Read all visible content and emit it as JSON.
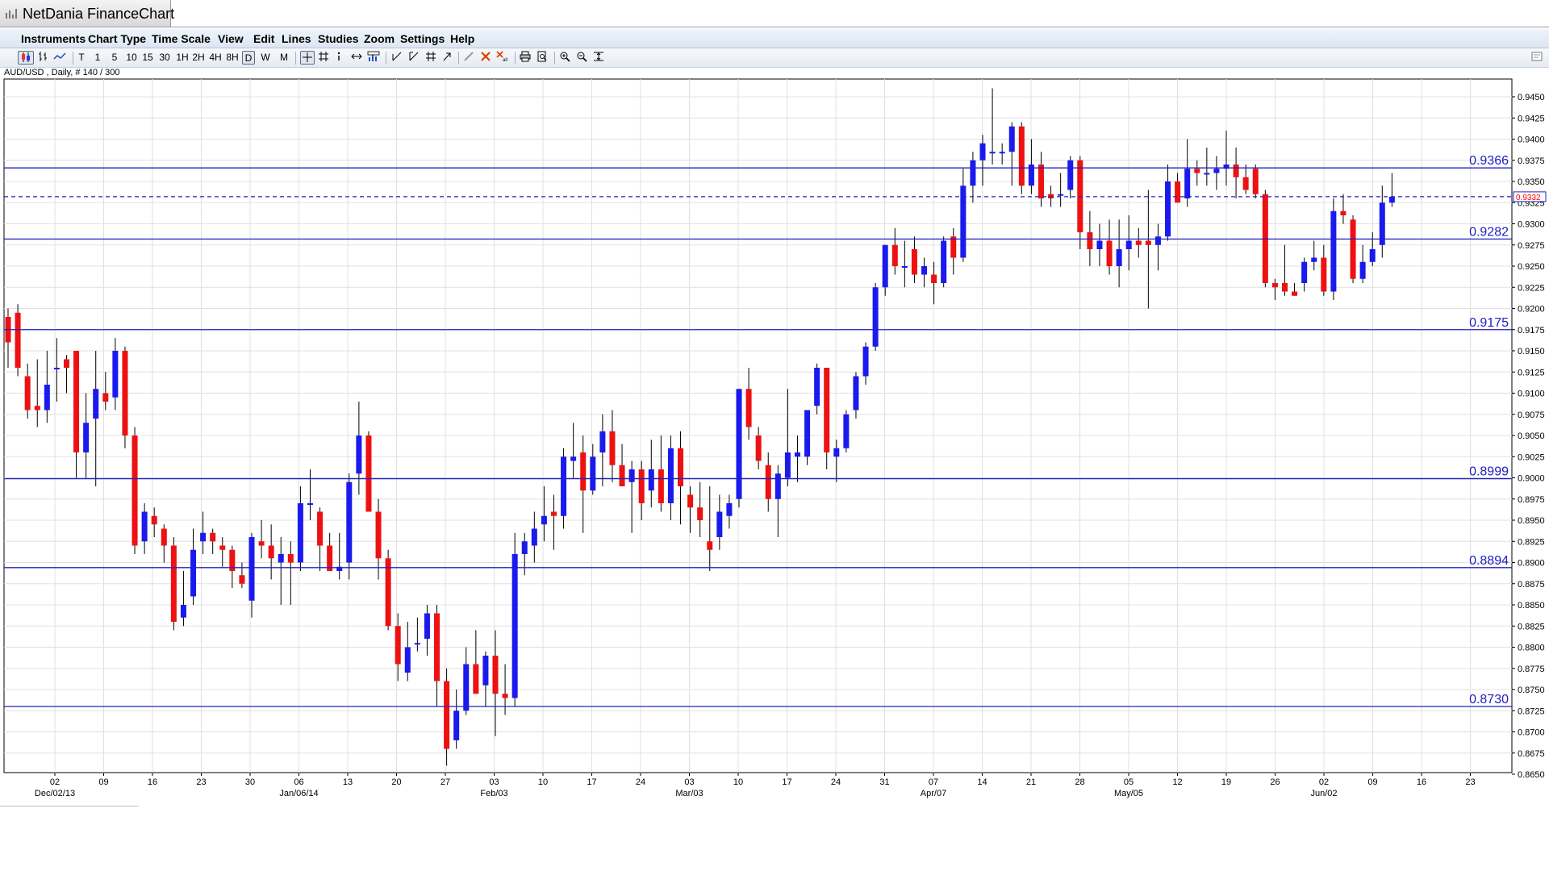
{
  "window": {
    "title": "NetDania FinanceChart"
  },
  "menu": [
    "Instruments",
    "Chart Type",
    "Time Scale",
    "View",
    "Edit",
    "Lines",
    "Studies",
    "Zoom",
    "Settings",
    "Help"
  ],
  "toolbar": {
    "timeframes": [
      "T",
      "1",
      "5",
      "10",
      "15",
      "30",
      "1H",
      "2H",
      "4H",
      "8H",
      "D",
      "W",
      "M"
    ],
    "selected": "D"
  },
  "symbol_info": "AUD/USD , Daily, # 140 / 300",
  "colors": {
    "bull": "#1a1aee",
    "bear": "#ee1111",
    "level_line": "#2020c0",
    "grid": "#e0e0e0",
    "last_price": "#ff0000"
  },
  "chart_data": {
    "type": "candlestick",
    "ylim": [
      0.865,
      0.946
    ],
    "y_ticks": [
      "0.9450",
      "0.9425",
      "0.9400",
      "0.9375",
      "0.9350",
      "0.9325",
      "0.9300",
      "0.9275",
      "0.9250",
      "0.9225",
      "0.9200",
      "0.9175",
      "0.9150",
      "0.9125",
      "0.9100",
      "0.9075",
      "0.9050",
      "0.9025",
      "0.9000",
      "0.8975",
      "0.8950",
      "0.8925",
      "0.8900",
      "0.8875",
      "0.8850",
      "0.8825",
      "0.8800",
      "0.8775",
      "0.8750",
      "0.8725",
      "0.8700",
      "0.8675",
      "0.8650"
    ],
    "x_ticks": [
      "02",
      "09",
      "16",
      "23",
      "30",
      "06",
      "13",
      "20",
      "27",
      "03",
      "10",
      "17",
      "24",
      "03",
      "10",
      "17",
      "24",
      "31",
      "07",
      "14",
      "21",
      "28",
      "05",
      "12",
      "19",
      "26",
      "02",
      "09",
      "16",
      "23"
    ],
    "x_months": [
      {
        "label": "Dec/02/13",
        "at_tick": 0
      },
      {
        "label": "Jan/06/14",
        "at_tick": 5
      },
      {
        "label": "Feb/03",
        "at_tick": 9
      },
      {
        "label": "Mar/03",
        "at_tick": 13
      },
      {
        "label": "Apr/07",
        "at_tick": 18
      },
      {
        "label": "May/05",
        "at_tick": 22
      },
      {
        "label": "Jun/02",
        "at_tick": 26
      }
    ],
    "levels": [
      {
        "value": 0.9366,
        "label": "0.9366"
      },
      {
        "value": 0.9282,
        "label": "0.9282"
      },
      {
        "value": 0.9175,
        "label": "0.9175"
      },
      {
        "value": 0.8999,
        "label": "0.8999"
      },
      {
        "value": 0.8894,
        "label": "0.8894"
      },
      {
        "value": 0.873,
        "label": "0.8730"
      }
    ],
    "last_price": {
      "value": 0.9332,
      "label": "0.9332"
    },
    "candles": [
      [
        0.919,
        0.92,
        0.913,
        0.916
      ],
      [
        0.9195,
        0.9205,
        0.912,
        0.913
      ],
      [
        0.912,
        0.9135,
        0.907,
        0.908
      ],
      [
        0.9085,
        0.914,
        0.906,
        0.908
      ],
      [
        0.908,
        0.915,
        0.9065,
        0.911
      ],
      [
        0.913,
        0.9165,
        0.909,
        0.913
      ],
      [
        0.914,
        0.9145,
        0.91,
        0.913
      ],
      [
        0.915,
        0.915,
        0.9,
        0.903
      ],
      [
        0.903,
        0.91,
        0.9,
        0.9065
      ],
      [
        0.907,
        0.915,
        0.899,
        0.9105
      ],
      [
        0.91,
        0.9125,
        0.908,
        0.909
      ],
      [
        0.9095,
        0.9165,
        0.908,
        0.915
      ],
      [
        0.915,
        0.9155,
        0.9035,
        0.905
      ],
      [
        0.905,
        0.906,
        0.891,
        0.892
      ],
      [
        0.8925,
        0.897,
        0.891,
        0.896
      ],
      [
        0.8955,
        0.8965,
        0.893,
        0.8945
      ],
      [
        0.894,
        0.8945,
        0.89,
        0.892
      ],
      [
        0.892,
        0.893,
        0.882,
        0.883
      ],
      [
        0.8835,
        0.889,
        0.8825,
        0.885
      ],
      [
        0.886,
        0.894,
        0.885,
        0.8915
      ],
      [
        0.8925,
        0.896,
        0.891,
        0.8935
      ],
      [
        0.8935,
        0.894,
        0.891,
        0.8925
      ],
      [
        0.892,
        0.893,
        0.8895,
        0.8915
      ],
      [
        0.8915,
        0.892,
        0.887,
        0.889
      ],
      [
        0.8885,
        0.89,
        0.887,
        0.8875
      ],
      [
        0.8855,
        0.8935,
        0.8835,
        0.893
      ],
      [
        0.8925,
        0.895,
        0.8905,
        0.892
      ],
      [
        0.892,
        0.8945,
        0.888,
        0.8905
      ],
      [
        0.89,
        0.893,
        0.885,
        0.891
      ],
      [
        0.891,
        0.8925,
        0.885,
        0.89
      ],
      [
        0.89,
        0.899,
        0.889,
        0.897
      ],
      [
        0.897,
        0.901,
        0.895,
        0.897
      ],
      [
        0.896,
        0.8965,
        0.889,
        0.892
      ],
      [
        0.892,
        0.8935,
        0.889,
        0.889
      ],
      [
        0.889,
        0.8935,
        0.888,
        0.8895
      ],
      [
        0.89,
        0.9005,
        0.888,
        0.8995
      ],
      [
        0.9005,
        0.909,
        0.898,
        0.905
      ],
      [
        0.905,
        0.9055,
        0.896,
        0.896
      ],
      [
        0.896,
        0.8975,
        0.888,
        0.8905
      ],
      [
        0.8905,
        0.8915,
        0.882,
        0.8825
      ],
      [
        0.8825,
        0.884,
        0.876,
        0.878
      ],
      [
        0.877,
        0.883,
        0.876,
        0.88
      ],
      [
        0.8805,
        0.8835,
        0.8795,
        0.8805
      ],
      [
        0.881,
        0.885,
        0.879,
        0.884
      ],
      [
        0.884,
        0.885,
        0.873,
        0.876
      ],
      [
        0.876,
        0.8775,
        0.866,
        0.868
      ],
      [
        0.869,
        0.875,
        0.868,
        0.8725
      ],
      [
        0.8725,
        0.88,
        0.872,
        0.878
      ],
      [
        0.878,
        0.882,
        0.8745,
        0.8745
      ],
      [
        0.8755,
        0.8795,
        0.873,
        0.879
      ],
      [
        0.879,
        0.882,
        0.8695,
        0.8745
      ],
      [
        0.8745,
        0.878,
        0.872,
        0.874
      ],
      [
        0.874,
        0.8935,
        0.873,
        0.891
      ],
      [
        0.891,
        0.8935,
        0.8885,
        0.8925
      ],
      [
        0.892,
        0.896,
        0.89,
        0.894
      ],
      [
        0.8945,
        0.899,
        0.8925,
        0.8955
      ],
      [
        0.896,
        0.898,
        0.8915,
        0.8955
      ],
      [
        0.8955,
        0.9035,
        0.894,
        0.9025
      ],
      [
        0.902,
        0.9065,
        0.9,
        0.9025
      ],
      [
        0.903,
        0.905,
        0.8935,
        0.8985
      ],
      [
        0.8985,
        0.904,
        0.898,
        0.9025
      ],
      [
        0.903,
        0.9075,
        0.899,
        0.9055
      ],
      [
        0.9055,
        0.908,
        0.8995,
        0.9015
      ],
      [
        0.9015,
        0.904,
        0.899,
        0.899
      ],
      [
        0.8995,
        0.902,
        0.8935,
        0.901
      ],
      [
        0.901,
        0.902,
        0.895,
        0.897
      ],
      [
        0.8985,
        0.9045,
        0.8965,
        0.901
      ],
      [
        0.901,
        0.905,
        0.896,
        0.897
      ],
      [
        0.897,
        0.905,
        0.895,
        0.9035
      ],
      [
        0.9035,
        0.9055,
        0.8945,
        0.899
      ],
      [
        0.898,
        0.899,
        0.8935,
        0.8965
      ],
      [
        0.8965,
        0.8995,
        0.893,
        0.895
      ],
      [
        0.8925,
        0.899,
        0.889,
        0.8915
      ],
      [
        0.893,
        0.898,
        0.8915,
        0.896
      ],
      [
        0.8955,
        0.898,
        0.894,
        0.897
      ],
      [
        0.8975,
        0.9105,
        0.8965,
        0.9105
      ],
      [
        0.9105,
        0.913,
        0.9045,
        0.906
      ],
      [
        0.905,
        0.906,
        0.901,
        0.902
      ],
      [
        0.9015,
        0.903,
        0.896,
        0.8975
      ],
      [
        0.8975,
        0.9015,
        0.893,
        0.9005
      ],
      [
        0.9,
        0.9105,
        0.899,
        0.903
      ],
      [
        0.9025,
        0.905,
        0.8995,
        0.903
      ],
      [
        0.9025,
        0.908,
        0.9015,
        0.908
      ],
      [
        0.9085,
        0.9135,
        0.9075,
        0.913
      ],
      [
        0.913,
        0.913,
        0.901,
        0.903
      ],
      [
        0.9025,
        0.9045,
        0.8995,
        0.9035
      ],
      [
        0.9035,
        0.908,
        0.903,
        0.9075
      ],
      [
        0.908,
        0.9125,
        0.907,
        0.912
      ],
      [
        0.912,
        0.916,
        0.911,
        0.9155
      ],
      [
        0.9155,
        0.923,
        0.915,
        0.9225
      ],
      [
        0.9225,
        0.9275,
        0.9215,
        0.9275
      ],
      [
        0.9275,
        0.9295,
        0.924,
        0.925
      ],
      [
        0.925,
        0.928,
        0.9225,
        0.925
      ],
      [
        0.927,
        0.9285,
        0.923,
        0.924
      ],
      [
        0.924,
        0.926,
        0.9225,
        0.925
      ],
      [
        0.924,
        0.9255,
        0.9205,
        0.923
      ],
      [
        0.923,
        0.9285,
        0.9225,
        0.928
      ],
      [
        0.9285,
        0.9295,
        0.924,
        0.926
      ],
      [
        0.926,
        0.9365,
        0.9255,
        0.9345
      ],
      [
        0.9345,
        0.9385,
        0.9325,
        0.9375
      ],
      [
        0.9375,
        0.9405,
        0.9345,
        0.9395
      ],
      [
        0.9385,
        0.946,
        0.937,
        0.9385
      ],
      [
        0.9385,
        0.9395,
        0.937,
        0.9385
      ],
      [
        0.9385,
        0.942,
        0.9345,
        0.9415
      ],
      [
        0.9415,
        0.942,
        0.9335,
        0.9345
      ],
      [
        0.9345,
        0.94,
        0.9335,
        0.937
      ],
      [
        0.937,
        0.9385,
        0.932,
        0.933
      ],
      [
        0.9335,
        0.9345,
        0.932,
        0.933
      ],
      [
        0.9335,
        0.936,
        0.932,
        0.9335
      ],
      [
        0.934,
        0.938,
        0.933,
        0.9375
      ],
      [
        0.9375,
        0.938,
        0.927,
        0.929
      ],
      [
        0.929,
        0.9315,
        0.925,
        0.927
      ],
      [
        0.927,
        0.93,
        0.925,
        0.928
      ],
      [
        0.928,
        0.9305,
        0.924,
        0.925
      ],
      [
        0.925,
        0.9305,
        0.9225,
        0.927
      ],
      [
        0.927,
        0.931,
        0.9245,
        0.928
      ],
      [
        0.928,
        0.9295,
        0.926,
        0.9275
      ],
      [
        0.928,
        0.934,
        0.92,
        0.9275
      ],
      [
        0.9275,
        0.93,
        0.9245,
        0.9285
      ],
      [
        0.9285,
        0.937,
        0.928,
        0.935
      ],
      [
        0.935,
        0.936,
        0.9325,
        0.9325
      ],
      [
        0.933,
        0.94,
        0.932,
        0.9365
      ],
      [
        0.9365,
        0.9375,
        0.9345,
        0.936
      ],
      [
        0.936,
        0.939,
        0.9345,
        0.936
      ],
      [
        0.936,
        0.938,
        0.934,
        0.9365
      ],
      [
        0.9365,
        0.941,
        0.9345,
        0.937
      ],
      [
        0.937,
        0.939,
        0.933,
        0.9355
      ],
      [
        0.9355,
        0.937,
        0.9335,
        0.934
      ],
      [
        0.9365,
        0.937,
        0.933,
        0.9335
      ],
      [
        0.9335,
        0.934,
        0.9225,
        0.923
      ],
      [
        0.923,
        0.9235,
        0.921,
        0.9225
      ],
      [
        0.923,
        0.9275,
        0.9215,
        0.922
      ],
      [
        0.922,
        0.923,
        0.9215,
        0.9215
      ],
      [
        0.923,
        0.926,
        0.922,
        0.9255
      ],
      [
        0.9255,
        0.928,
        0.9245,
        0.926
      ],
      [
        0.926,
        0.9275,
        0.9215,
        0.922
      ],
      [
        0.922,
        0.933,
        0.921,
        0.9315
      ],
      [
        0.9315,
        0.9335,
        0.93,
        0.931
      ],
      [
        0.9305,
        0.931,
        0.923,
        0.9235
      ],
      [
        0.9235,
        0.9275,
        0.923,
        0.9255
      ],
      [
        0.9255,
        0.929,
        0.925,
        0.927
      ],
      [
        0.9275,
        0.9345,
        0.926,
        0.9325
      ],
      [
        0.9325,
        0.936,
        0.932,
        0.9332
      ]
    ]
  }
}
